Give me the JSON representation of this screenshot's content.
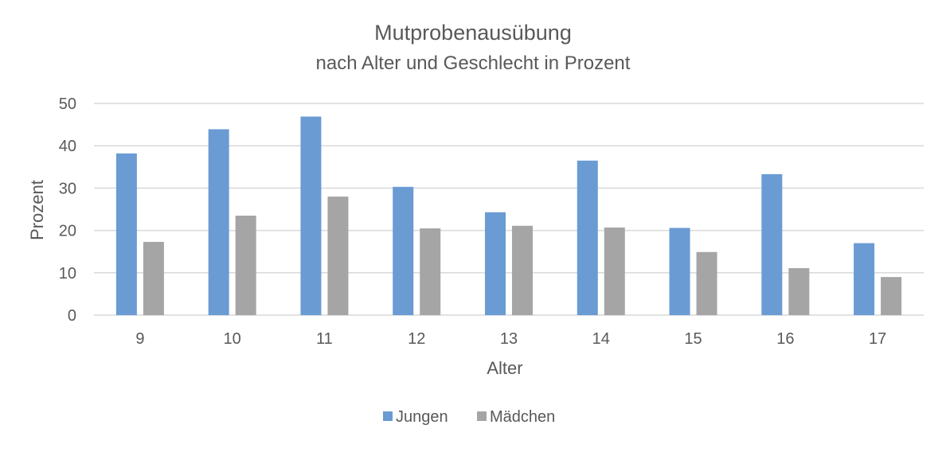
{
  "chart_data": {
    "type": "bar",
    "title": "Mutprobenausübung",
    "subtitle": "nach Alter und Geschlecht in Prozent",
    "xlabel": "Alter",
    "ylabel": "Prozent",
    "categories": [
      "9",
      "10",
      "11",
      "12",
      "13",
      "14",
      "15",
      "16",
      "17"
    ],
    "series": [
      {
        "name": "Jungen",
        "color": "#6a9bd3",
        "values": [
          38.2,
          43.9,
          46.9,
          30.3,
          24.3,
          36.5,
          20.6,
          33.3,
          17.0
        ]
      },
      {
        "name": "Mädchen",
        "color": "#a5a5a5",
        "values": [
          17.3,
          23.5,
          28.0,
          20.5,
          21.1,
          20.7,
          14.9,
          11.1,
          9.0
        ]
      }
    ],
    "ylim": [
      0,
      50
    ],
    "yticks": [
      "0",
      "10",
      "20",
      "30",
      "40",
      "50"
    ],
    "grid": true,
    "legend_position": "bottom"
  }
}
